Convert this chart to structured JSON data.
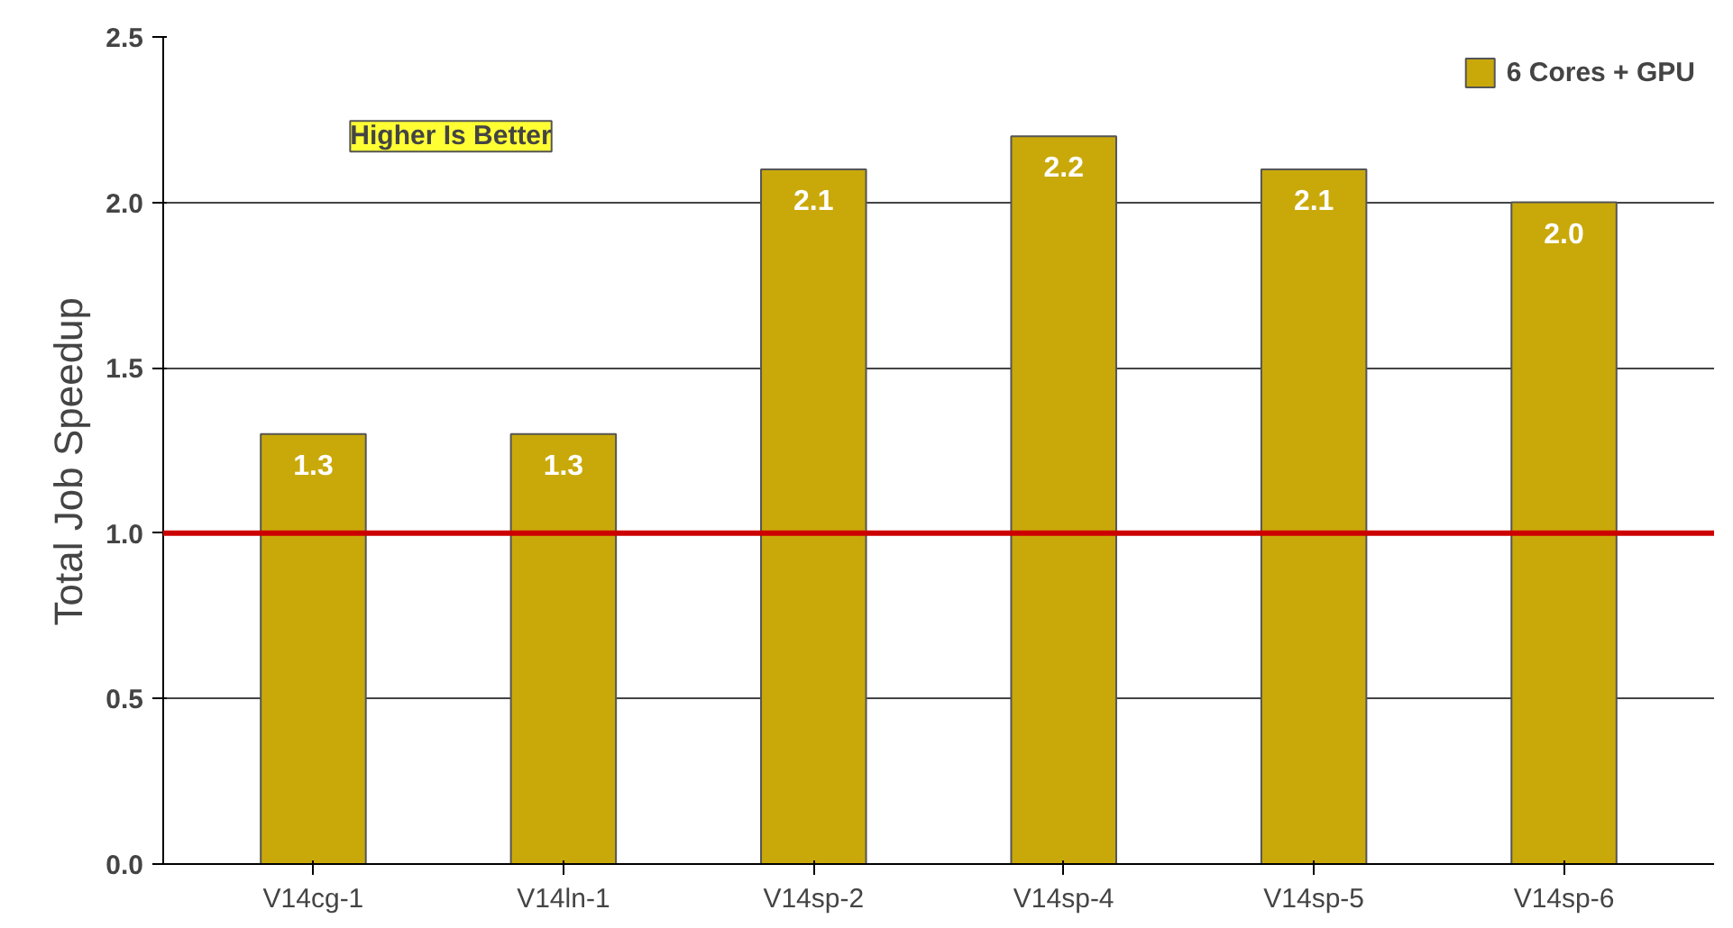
{
  "chart_data": {
    "type": "bar",
    "categories": [
      "V14cg-1",
      "V14ln-1",
      "V14sp-2",
      "V14sp-4",
      "V14sp-5",
      "V14sp-6"
    ],
    "series": [
      {
        "name": "6 Cores + GPU",
        "color": "#c9a90a",
        "values": [
          1.3,
          1.3,
          2.1,
          2.2,
          2.1,
          2.0
        ],
        "value_labels": [
          "1.3",
          "1.3",
          "2.1",
          "2.2",
          "2.1",
          "2.0"
        ]
      }
    ],
    "ylabel": "Total  Job  Speedup",
    "ylim": [
      0,
      2.5
    ],
    "yticks": [
      {
        "value": 0,
        "label": "0.0"
      },
      0.5,
      {
        "value": 1,
        "label": "1.0"
      },
      1.5,
      {
        "value": 2,
        "label": "2.0"
      },
      2.5
    ],
    "grid": "y",
    "legend": "top right",
    "ref_lines": [
      {
        "axis": "y",
        "value": 1.0,
        "color": "#cc0000"
      }
    ],
    "annotations": [
      "Higher Is Better"
    ]
  }
}
